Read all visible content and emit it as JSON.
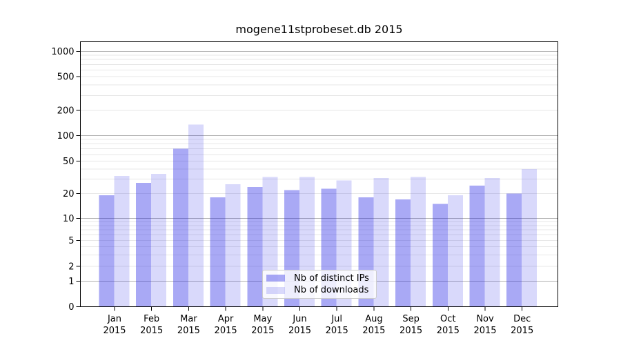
{
  "chart_data": {
    "type": "bar",
    "title": "mogene11stprobeset.db 2015",
    "categories": [
      "Jan 2015",
      "Feb 2015",
      "Mar 2015",
      "Apr 2015",
      "May 2015",
      "Jun 2015",
      "Jul 2015",
      "Aug 2015",
      "Sep 2015",
      "Oct 2015",
      "Nov 2015",
      "Dec 2015"
    ],
    "series": [
      {
        "name": "Nb of distinct IPs",
        "color": "rgba(30,30,230,0.38)",
        "values": [
          19,
          27,
          70,
          18,
          24,
          22,
          23,
          18,
          17,
          15,
          25,
          20
        ]
      },
      {
        "name": "Nb of downloads",
        "color": "rgba(30,30,230,0.17)",
        "values": [
          33,
          35,
          135,
          26,
          32,
          32,
          29,
          31,
          32,
          19,
          31,
          40
        ]
      }
    ],
    "xlabel": "",
    "ylabel": "",
    "yticks": [
      0,
      1,
      2,
      5,
      10,
      20,
      50,
      100,
      200,
      500,
      1000
    ],
    "yscale": "symlog",
    "ylim": [
      0,
      1300
    ],
    "grid": true,
    "legend_position": "lower center",
    "colors": {
      "major_grid": "#b0b0b0",
      "minor_grid": "#e7e7e7",
      "spine": "#000000",
      "legend_border": "#cccccc"
    }
  }
}
